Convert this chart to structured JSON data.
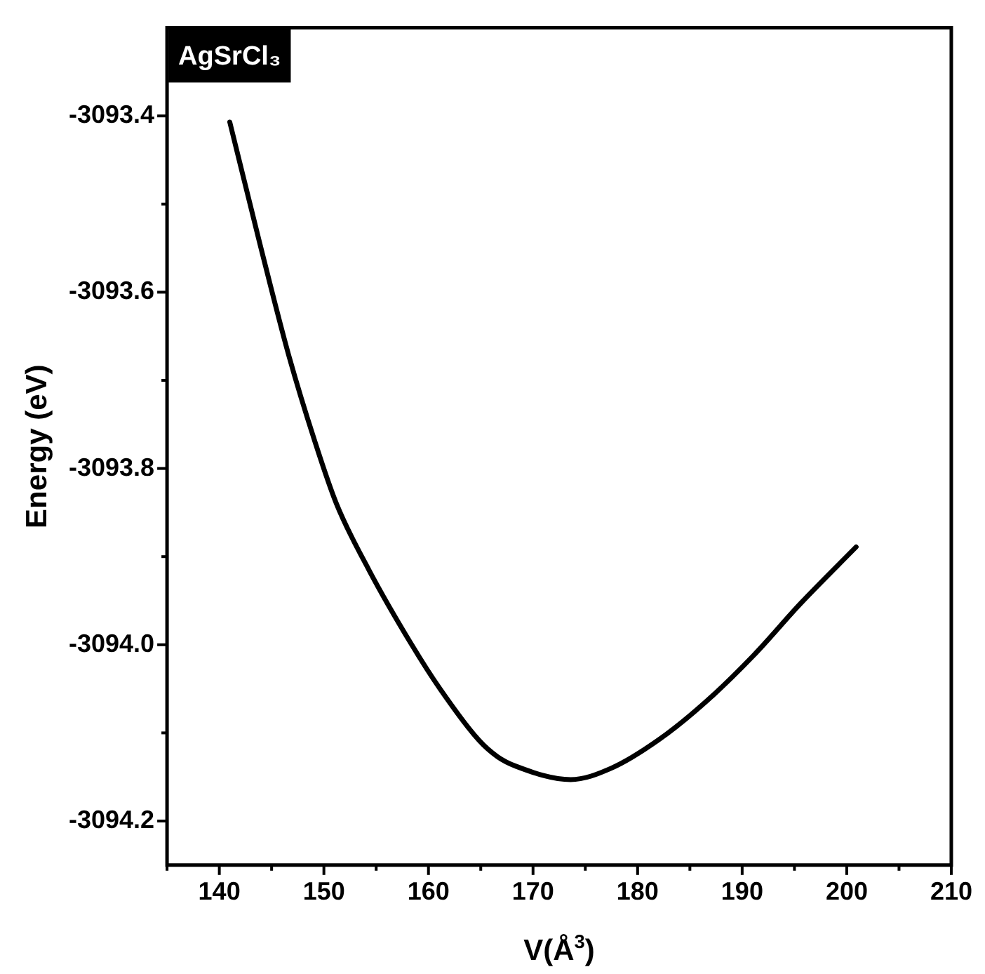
{
  "chart_data": {
    "type": "line",
    "annotations": [
      "AgSrCl₃"
    ],
    "xlabel": "V(Å$^{3}$)",
    "ylabel": "Energy (eV)",
    "x": [
      141.0,
      143.9,
      146.6,
      149.1,
      151.2,
      154.3,
      158.4,
      161.1,
      164.8,
      166.6,
      168.4,
      173.6,
      177.5,
      182.0,
      186.5,
      191.1,
      195.6,
      200.9
    ],
    "series": [
      {
        "color": "#000000",
        "values": [
          -3093.407,
          -3093.546,
          -3093.67,
          -3093.768,
          -3093.84,
          -3093.915,
          -3094.0,
          -3094.05,
          -3094.108,
          -3094.127,
          -3094.138,
          -3094.153,
          -3094.14,
          -3094.108,
          -3094.065,
          -3094.012,
          -3093.953,
          -3093.889
        ]
      }
    ],
    "xlim": [
      135,
      210
    ],
    "xticks": [
      {
        "value": 135,
        "label": null
      },
      140,
      {
        "value": 145,
        "label": null
      },
      150,
      {
        "value": 155,
        "label": null
      },
      160,
      {
        "value": 165,
        "label": null
      },
      170,
      {
        "value": 175,
        "label": null
      },
      180,
      {
        "value": 185,
        "label": null
      },
      190,
      {
        "value": 195,
        "label": null
      },
      200,
      {
        "value": 205,
        "label": null
      },
      210
    ],
    "ylim": [
      -3094.25,
      -3093.3
    ],
    "yticks": [
      {
        "value": -3094.2,
        "label": "-3094.2"
      },
      {
        "value": -3094.1,
        "label": null
      },
      {
        "value": -3094.0,
        "label": "-3094.0"
      },
      {
        "value": -3093.9,
        "label": null
      },
      {
        "value": -3093.8,
        "label": "-3093.8"
      },
      {
        "value": -3093.7,
        "label": null
      },
      {
        "value": -3093.6,
        "label": "-3093.6"
      },
      {
        "value": -3093.5,
        "label": null
      },
      {
        "value": -3093.4,
        "label": "-3093.4"
      }
    ],
    "grid": false,
    "legend": false,
    "marker": "none",
    "line_style": "solid"
  }
}
